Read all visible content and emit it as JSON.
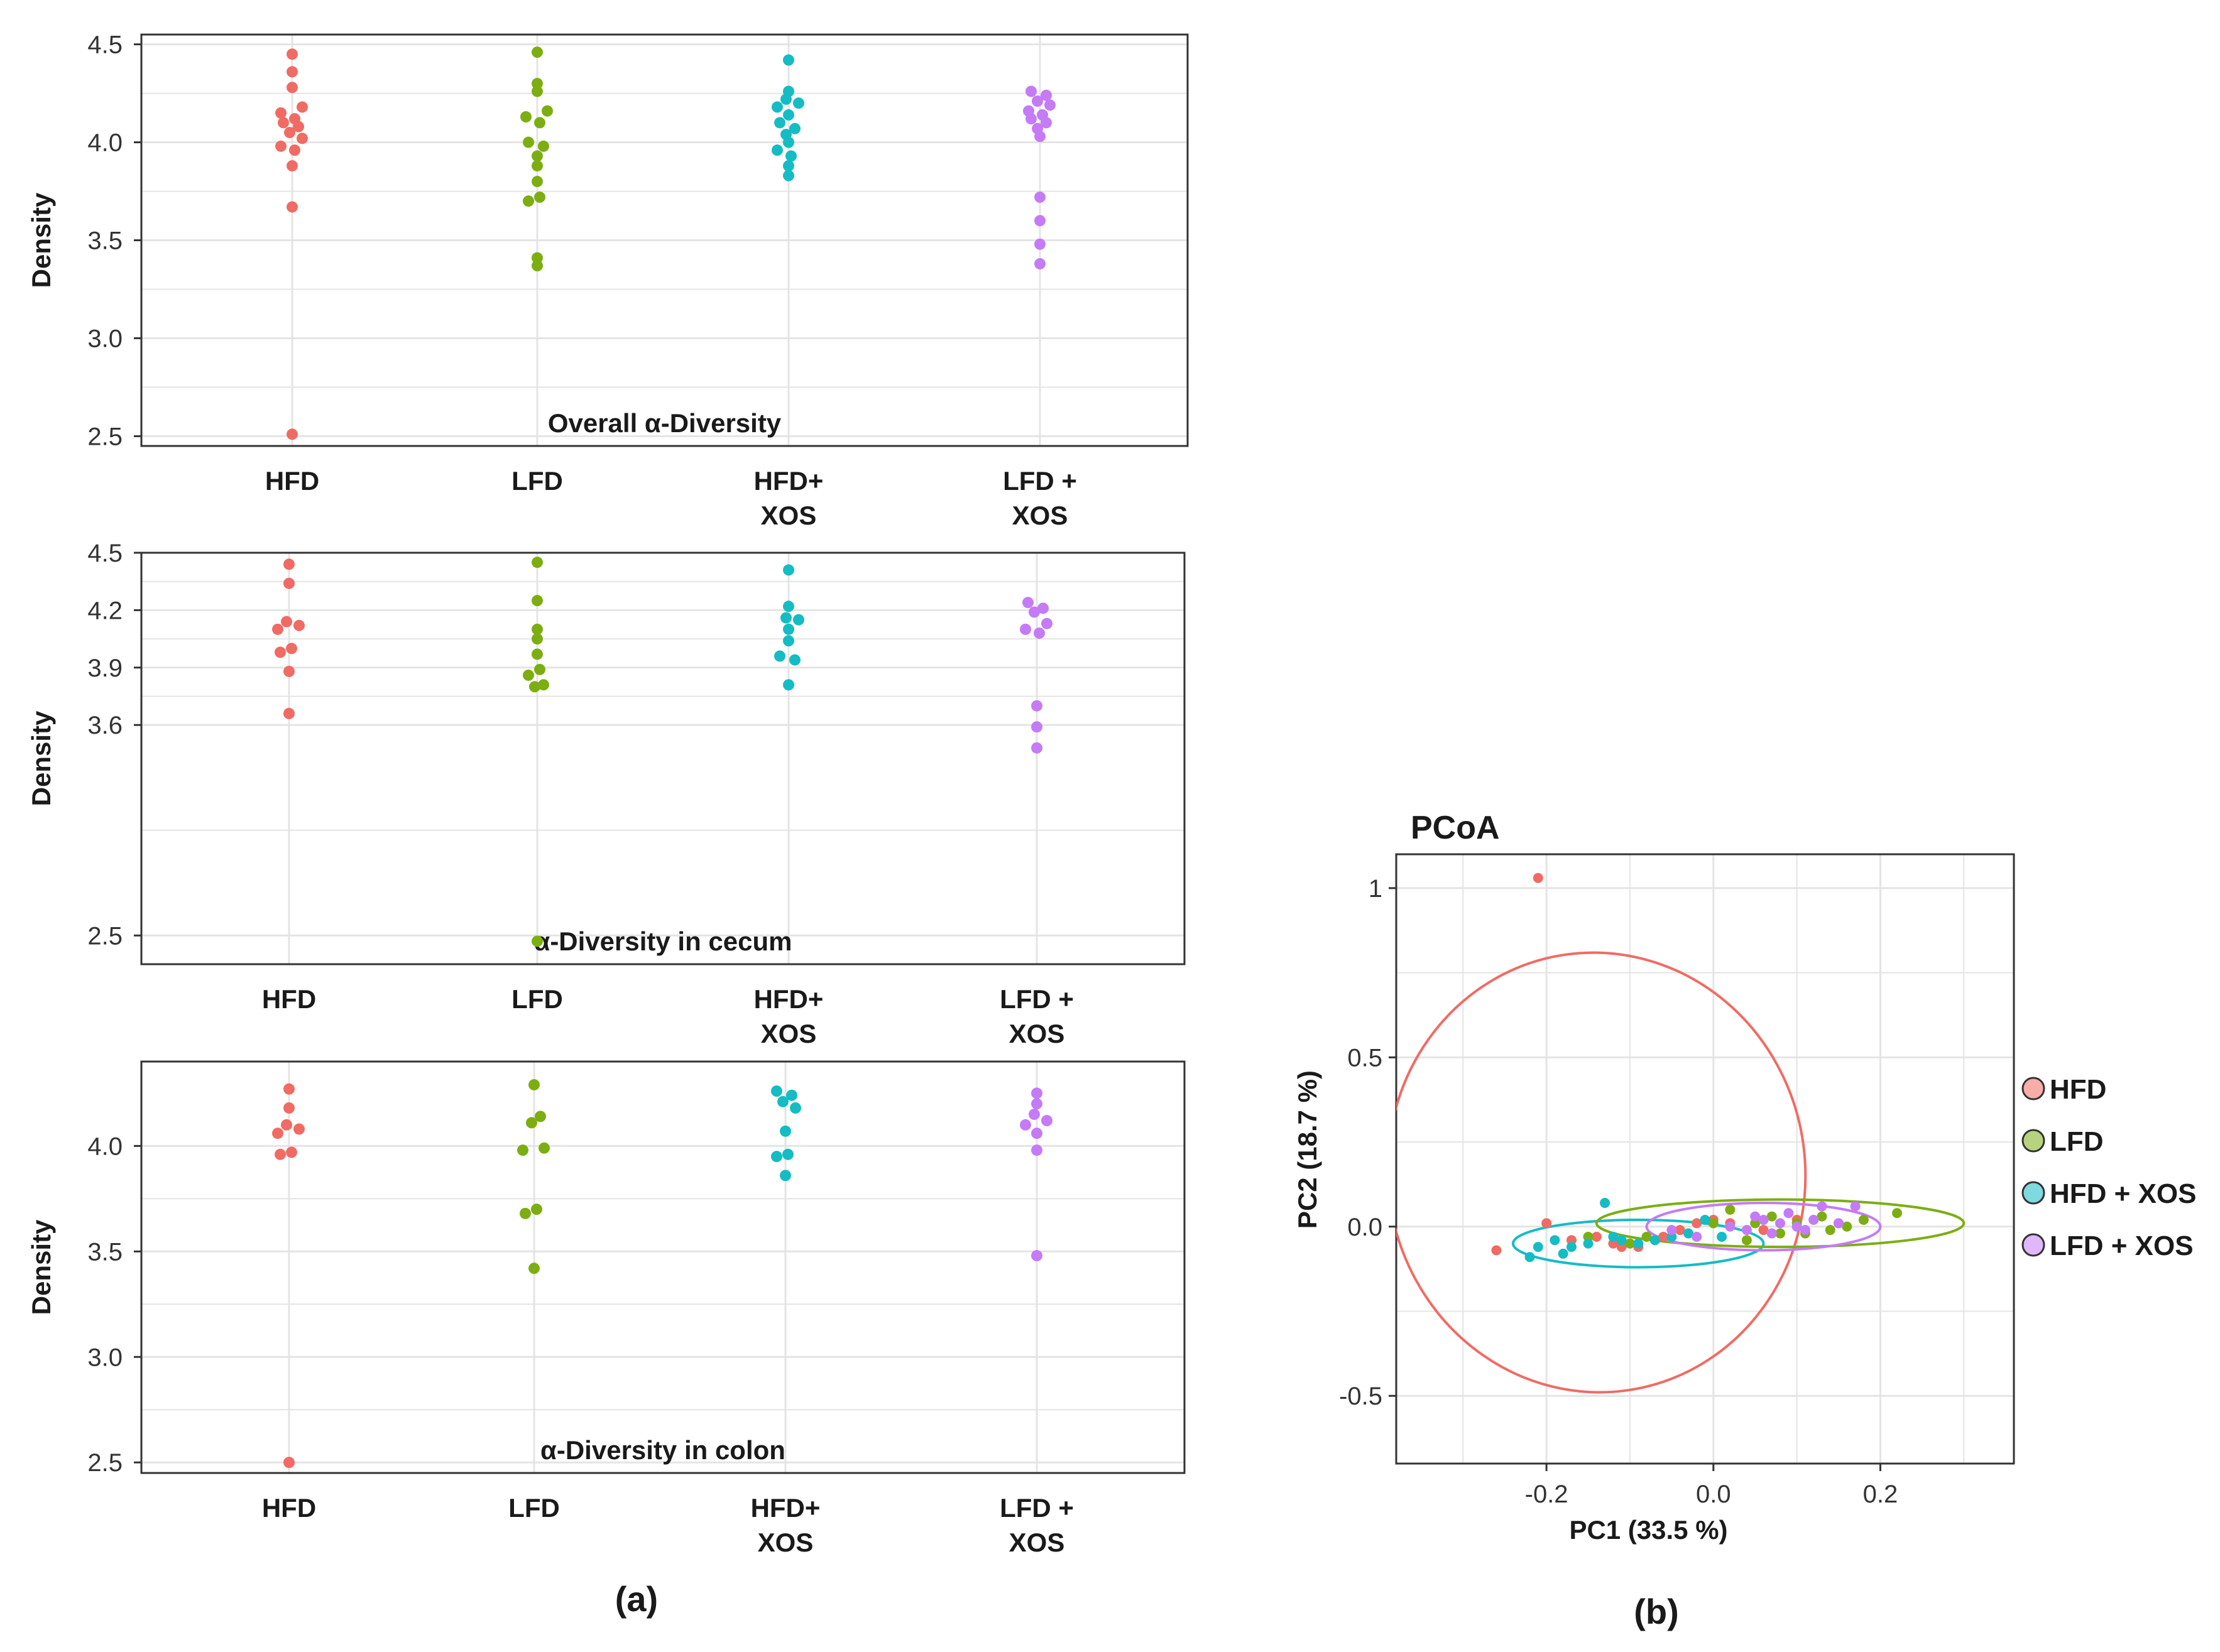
{
  "colors": {
    "HFD": "#f06b63",
    "LFD": "#7cae12",
    "HFD+XOS": "#15bcc4",
    "LFD+XOS": "#c47bf5",
    "grid": "#e4e4e4",
    "axis": "#333333"
  },
  "labels": {
    "panel_a": "(a)",
    "panel_b": "(b)"
  },
  "chart_data": [
    {
      "type": "scatter",
      "panel": "a",
      "title": "Overall α-Diversity",
      "ylabel": "Density",
      "ylim": [
        2.45,
        4.55
      ],
      "yticks": [
        {
          "value": 4.5,
          "label": "4.5"
        },
        {
          "value": 4.0,
          "label": "4.0"
        },
        {
          "value": 3.5,
          "label": "3.5"
        },
        {
          "value": 3.0,
          "label": "3.0"
        },
        {
          "value": 2.5,
          "label": "2.5"
        }
      ],
      "categories": [
        {
          "key": "HFD",
          "label1": "HFD",
          "label2": ""
        },
        {
          "key": "LFD",
          "label1": "LFD",
          "label2": ""
        },
        {
          "key": "HFD+XOS",
          "label1": "HFD+",
          "label2": "XOS"
        },
        {
          "key": "LFD+XOS",
          "label1": "LFD +",
          "label2": "XOS"
        }
      ],
      "series": [
        {
          "name": "HFD",
          "values": [
            4.45,
            4.36,
            4.28,
            4.18,
            4.15,
            4.12,
            4.1,
            4.08,
            4.05,
            4.02,
            3.98,
            3.96,
            3.88,
            3.67,
            2.51
          ]
        },
        {
          "name": "LFD",
          "values": [
            4.46,
            4.3,
            4.26,
            4.16,
            4.13,
            4.1,
            4.0,
            3.98,
            3.93,
            3.88,
            3.8,
            3.72,
            3.7,
            3.41,
            3.37
          ]
        },
        {
          "name": "HFD+XOS",
          "values": [
            4.42,
            4.26,
            4.22,
            4.2,
            4.18,
            4.14,
            4.1,
            4.07,
            4.04,
            4.0,
            3.96,
            3.93,
            3.88,
            3.83
          ]
        },
        {
          "name": "LFD+XOS",
          "values": [
            4.26,
            4.24,
            4.21,
            4.19,
            4.16,
            4.14,
            4.12,
            4.1,
            4.07,
            4.03,
            3.72,
            3.6,
            3.48,
            3.38
          ]
        }
      ]
    },
    {
      "type": "scatter",
      "panel": "a",
      "title": "α-Diversity in cecum",
      "ylabel": "Density",
      "ylim": [
        2.35,
        4.5
      ],
      "yticks": [
        {
          "value": 4.5,
          "label": "4.5"
        },
        {
          "value": 4.2,
          "label": "4.2"
        },
        {
          "value": 3.9,
          "label": "3.9"
        },
        {
          "value": 3.6,
          "label": "3.6"
        },
        {
          "value": 2.5,
          "label": "2.5"
        }
      ],
      "categories": [
        {
          "key": "HFD",
          "label1": "HFD",
          "label2": ""
        },
        {
          "key": "LFD",
          "label1": "LFD",
          "label2": ""
        },
        {
          "key": "HFD+XOS",
          "label1": "HFD+",
          "label2": "XOS"
        },
        {
          "key": "LFD+XOS",
          "label1": "LFD +",
          "label2": "XOS"
        }
      ],
      "series": [
        {
          "name": "HFD",
          "values": [
            4.44,
            4.34,
            4.14,
            4.12,
            4.1,
            4.0,
            3.98,
            3.88,
            3.66
          ]
        },
        {
          "name": "LFD",
          "values": [
            4.45,
            4.25,
            4.1,
            4.05,
            3.97,
            3.89,
            3.86,
            3.81,
            3.8,
            2.47
          ]
        },
        {
          "name": "HFD+XOS",
          "values": [
            4.41,
            4.22,
            4.16,
            4.15,
            4.1,
            4.04,
            3.96,
            3.94,
            3.81
          ]
        },
        {
          "name": "LFD+XOS",
          "values": [
            4.24,
            4.21,
            4.19,
            4.13,
            4.1,
            4.08,
            3.7,
            3.59,
            3.48
          ]
        }
      ]
    },
    {
      "type": "scatter",
      "panel": "a",
      "title": "α-Diversity in colon",
      "ylabel": "Density",
      "ylim": [
        2.45,
        4.4
      ],
      "yticks": [
        {
          "value": 4.0,
          "label": "4.0"
        },
        {
          "value": 3.5,
          "label": "3.5"
        },
        {
          "value": 3.0,
          "label": "3.0"
        },
        {
          "value": 2.5,
          "label": "2.5"
        }
      ],
      "categories": [
        {
          "key": "HFD",
          "label1": "HFD",
          "label2": ""
        },
        {
          "key": "LFD",
          "label1": "LFD",
          "label2": ""
        },
        {
          "key": "HFD+XOS",
          "label1": "HFD+",
          "label2": "XOS"
        },
        {
          "key": "LFD+XOS",
          "label1": "LFD +",
          "label2": "XOS"
        }
      ],
      "series": [
        {
          "name": "HFD",
          "values": [
            4.27,
            4.18,
            4.1,
            4.08,
            4.06,
            3.97,
            3.96,
            2.5
          ]
        },
        {
          "name": "LFD",
          "values": [
            4.29,
            4.14,
            4.11,
            3.99,
            3.98,
            3.7,
            3.68,
            3.42
          ]
        },
        {
          "name": "HFD+XOS",
          "values": [
            4.26,
            4.24,
            4.21,
            4.18,
            4.07,
            3.96,
            3.95,
            3.86
          ]
        },
        {
          "name": "LFD+XOS",
          "values": [
            4.25,
            4.2,
            4.15,
            4.12,
            4.1,
            4.06,
            3.98,
            3.48
          ]
        }
      ]
    },
    {
      "type": "scatter",
      "panel": "b",
      "title": "PCoA",
      "xlabel": "PC1 (33.5 %)",
      "ylabel": "PC2 (18.7 %)",
      "xlim": [
        -0.38,
        0.36
      ],
      "ylim": [
        -0.7,
        1.1
      ],
      "xticks": [
        {
          "value": -0.2,
          "label": "-0.2"
        },
        {
          "value": 0.0,
          "label": "0.0"
        },
        {
          "value": 0.2,
          "label": "0.2"
        }
      ],
      "yticks": [
        {
          "value": 1.0,
          "label": "1"
        },
        {
          "value": 0.5,
          "label": "0.5"
        },
        {
          "value": 0.0,
          "label": "0.0"
        },
        {
          "value": -0.5,
          "label": "-0.5"
        }
      ],
      "legend": [
        "HFD",
        "LFD",
        "HFD + XOS",
        "LFD + XOS"
      ],
      "ellipses": [
        {
          "name": "HFD",
          "cx": -0.14,
          "cy": 0.16,
          "rx": 0.25,
          "ry": 0.65,
          "angle": -8
        },
        {
          "name": "HFD+XOS",
          "cx": -0.09,
          "cy": -0.05,
          "rx": 0.15,
          "ry": 0.07,
          "angle": 0
        },
        {
          "name": "LFD",
          "cx": 0.08,
          "cy": 0.01,
          "rx": 0.22,
          "ry": 0.07,
          "angle": 0
        },
        {
          "name": "LFD+XOS",
          "cx": 0.06,
          "cy": 0.0,
          "rx": 0.14,
          "ry": 0.07,
          "angle": 0
        }
      ],
      "series": [
        {
          "name": "HFD",
          "points": [
            [
              -0.21,
              1.03
            ],
            [
              -0.26,
              -0.07
            ],
            [
              -0.2,
              0.01
            ],
            [
              -0.14,
              -0.03
            ],
            [
              -0.12,
              -0.05
            ],
            [
              -0.11,
              -0.06
            ],
            [
              -0.09,
              -0.06
            ],
            [
              -0.06,
              -0.03
            ],
            [
              -0.04,
              -0.01
            ],
            [
              -0.02,
              0.01
            ],
            [
              0.0,
              0.02
            ],
            [
              0.02,
              0.01
            ],
            [
              0.06,
              -0.01
            ],
            [
              0.1,
              0.02
            ],
            [
              0.15,
              0.01
            ],
            [
              -0.17,
              -0.04
            ]
          ]
        },
        {
          "name": "LFD",
          "points": [
            [
              -0.15,
              -0.03
            ],
            [
              -0.1,
              -0.05
            ],
            [
              -0.08,
              -0.03
            ],
            [
              0.0,
              0.01
            ],
            [
              0.04,
              -0.04
            ],
            [
              0.05,
              0.01
            ],
            [
              0.07,
              0.03
            ],
            [
              0.08,
              -0.02
            ],
            [
              0.1,
              0.01
            ],
            [
              0.12,
              0.02
            ],
            [
              0.13,
              0.03
            ],
            [
              0.14,
              -0.01
            ],
            [
              0.16,
              0.0
            ],
            [
              0.18,
              0.02
            ],
            [
              0.22,
              0.04
            ],
            [
              0.02,
              0.05
            ],
            [
              0.11,
              -0.02
            ]
          ]
        },
        {
          "name": "HFD+XOS",
          "points": [
            [
              -0.22,
              -0.09
            ],
            [
              -0.21,
              -0.06
            ],
            [
              -0.19,
              -0.04
            ],
            [
              -0.18,
              -0.08
            ],
            [
              -0.17,
              -0.06
            ],
            [
              -0.15,
              -0.05
            ],
            [
              -0.13,
              0.07
            ],
            [
              -0.12,
              -0.03
            ],
            [
              -0.11,
              -0.04
            ],
            [
              -0.09,
              -0.05
            ],
            [
              -0.07,
              -0.04
            ],
            [
              -0.05,
              -0.03
            ],
            [
              -0.03,
              -0.02
            ],
            [
              -0.01,
              0.02
            ],
            [
              0.01,
              -0.03
            ]
          ]
        },
        {
          "name": "LFD+XOS",
          "points": [
            [
              -0.05,
              -0.01
            ],
            [
              -0.02,
              -0.03
            ],
            [
              0.02,
              0.0
            ],
            [
              0.04,
              -0.01
            ],
            [
              0.06,
              0.02
            ],
            [
              0.07,
              -0.02
            ],
            [
              0.08,
              0.01
            ],
            [
              0.09,
              0.04
            ],
            [
              0.1,
              0.0
            ],
            [
              0.11,
              -0.01
            ],
            [
              0.12,
              0.02
            ],
            [
              0.13,
              0.06
            ],
            [
              0.15,
              0.01
            ],
            [
              0.17,
              0.06
            ],
            [
              0.05,
              0.03
            ]
          ]
        }
      ]
    }
  ]
}
